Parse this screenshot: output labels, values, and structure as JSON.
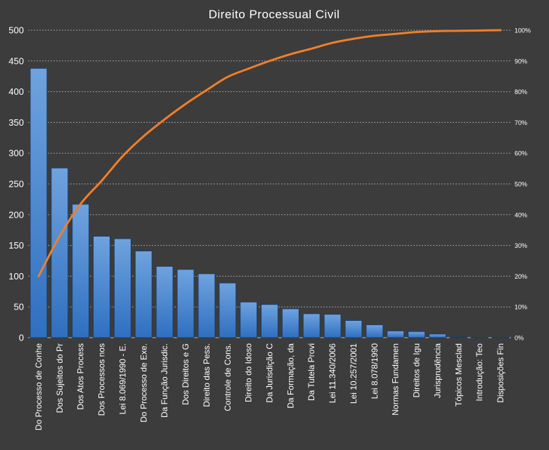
{
  "chart_data": {
    "type": "bar",
    "title": "Direito Processual Civil",
    "categories": [
      "Do Processo de Conhe",
      "Dos Sujeitos do Pr",
      "Dos Atos Process",
      "Dos Processos nos",
      "Lei 8.069/1990 - E.",
      "Do Processo de Exe.",
      "Da Função Jurisdic.",
      "Dos Direitos e G",
      "Direito das Pess.",
      "Controle de Cons.",
      "Direito do Idoso",
      "Da Jurisdição C",
      "Da Formação, da",
      "Da Tutela Provi",
      "Lei 11.340/2006",
      "Lei 10.257/2001",
      "Lei 8.078/1990",
      "Normas Fundamen",
      "Direitos de Igu",
      "Jurisprudência",
      "Tópicos Mesclad",
      "Introdução: Teo",
      "Disposições Fin"
    ],
    "series": [
      {
        "type": "bar",
        "values": [
          438,
          276,
          217,
          165,
          161,
          141,
          116,
          111,
          104,
          89,
          58,
          54,
          47,
          39,
          38,
          28,
          21,
          11,
          10,
          6,
          1,
          0.5,
          0.5
        ]
      },
      {
        "type": "line",
        "axis": "right",
        "values": [
          0.2,
          0.33,
          0.435,
          0.51,
          0.59,
          0.655,
          0.71,
          0.76,
          0.805,
          0.848,
          0.875,
          0.9,
          0.922,
          0.94,
          0.959,
          0.972,
          0.982,
          0.988,
          0.994,
          0.997,
          0.998,
          0.999,
          1.0
        ]
      }
    ],
    "y_left": {
      "ylim": [
        0,
        500
      ],
      "ticks": [
        0,
        50,
        100,
        150,
        200,
        250,
        300,
        350,
        400,
        450,
        500
      ],
      "tick_labels": [
        "0",
        "50",
        "100",
        "150",
        "200",
        "250",
        "300",
        "350",
        "400",
        "450",
        "500"
      ]
    },
    "y_right": {
      "ylim": [
        0,
        1
      ],
      "ticks": [
        0,
        0.1,
        0.2,
        0.3,
        0.4,
        0.5,
        0.6,
        0.7,
        0.8,
        0.9,
        1.0
      ],
      "tick_labels": [
        "0%",
        "10%",
        "20%",
        "30%",
        "40%",
        "50%",
        "60%",
        "70%",
        "80%",
        "90%",
        "100%"
      ]
    },
    "grid": true,
    "legend": "none",
    "colors": {
      "background": "#3c3c3c",
      "bar_top": "#6fa3de",
      "bar_bottom": "#2f6fc0",
      "bar_edge": "#1c3c66",
      "line": "#f07e2a",
      "grid": "#9a9a9a",
      "text": "#ffffff"
    }
  }
}
